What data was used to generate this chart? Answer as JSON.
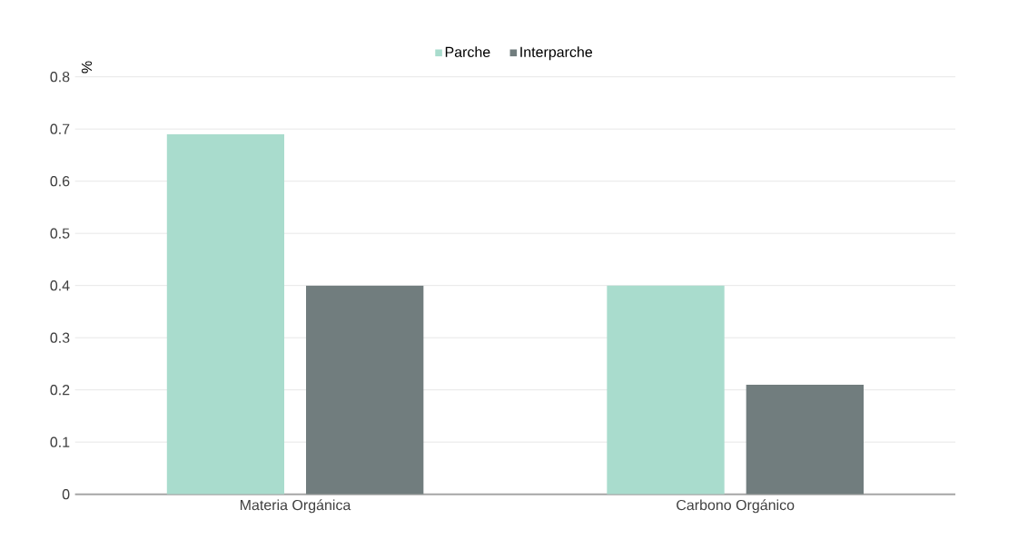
{
  "chart_data": {
    "type": "bar",
    "ylabel": "%",
    "categories": [
      "Materia Orgánica",
      "Carbono Orgánico"
    ],
    "series": [
      {
        "name": "Parche",
        "color": "#a9dccd",
        "values": [
          0.69,
          0.4
        ]
      },
      {
        "name": "Interparche",
        "color": "#717d7e",
        "values": [
          0.4,
          0.21
        ]
      }
    ],
    "ylim": [
      0,
      0.8
    ],
    "yticks": [
      0,
      0.1,
      0.2,
      0.3,
      0.4,
      0.5,
      0.6,
      0.7,
      0.8
    ],
    "grid": "y",
    "legend": "top"
  }
}
